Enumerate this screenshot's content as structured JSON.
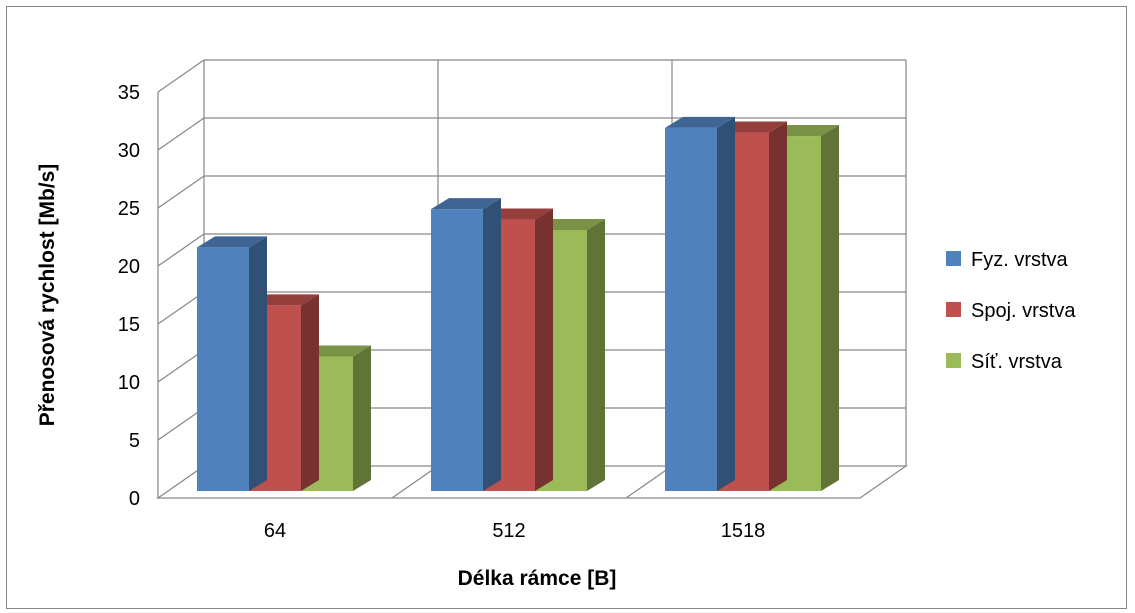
{
  "chart_data": {
    "type": "bar",
    "title": "",
    "xlabel": "Délka rámce [B]",
    "ylabel": "Přenosová rychlost [Mb/s]",
    "categories": [
      "64",
      "512",
      "1518"
    ],
    "ylim": [
      0,
      35
    ],
    "yticks": [
      "0",
      "5",
      "10",
      "15",
      "20",
      "25",
      "30",
      "35"
    ],
    "grid": true,
    "legend_position": "right",
    "series": [
      {
        "name": "Fyz. vrstva",
        "values": [
          21.0,
          24.3,
          31.3
        ],
        "color": "#4F81BD"
      },
      {
        "name": "Spoj. vrstva",
        "values": [
          16.0,
          23.4,
          30.9
        ],
        "color": "#C0504D"
      },
      {
        "name": "Síť. vrstva",
        "values": [
          11.6,
          22.5,
          30.6
        ],
        "color": "#9BBB59"
      }
    ]
  }
}
